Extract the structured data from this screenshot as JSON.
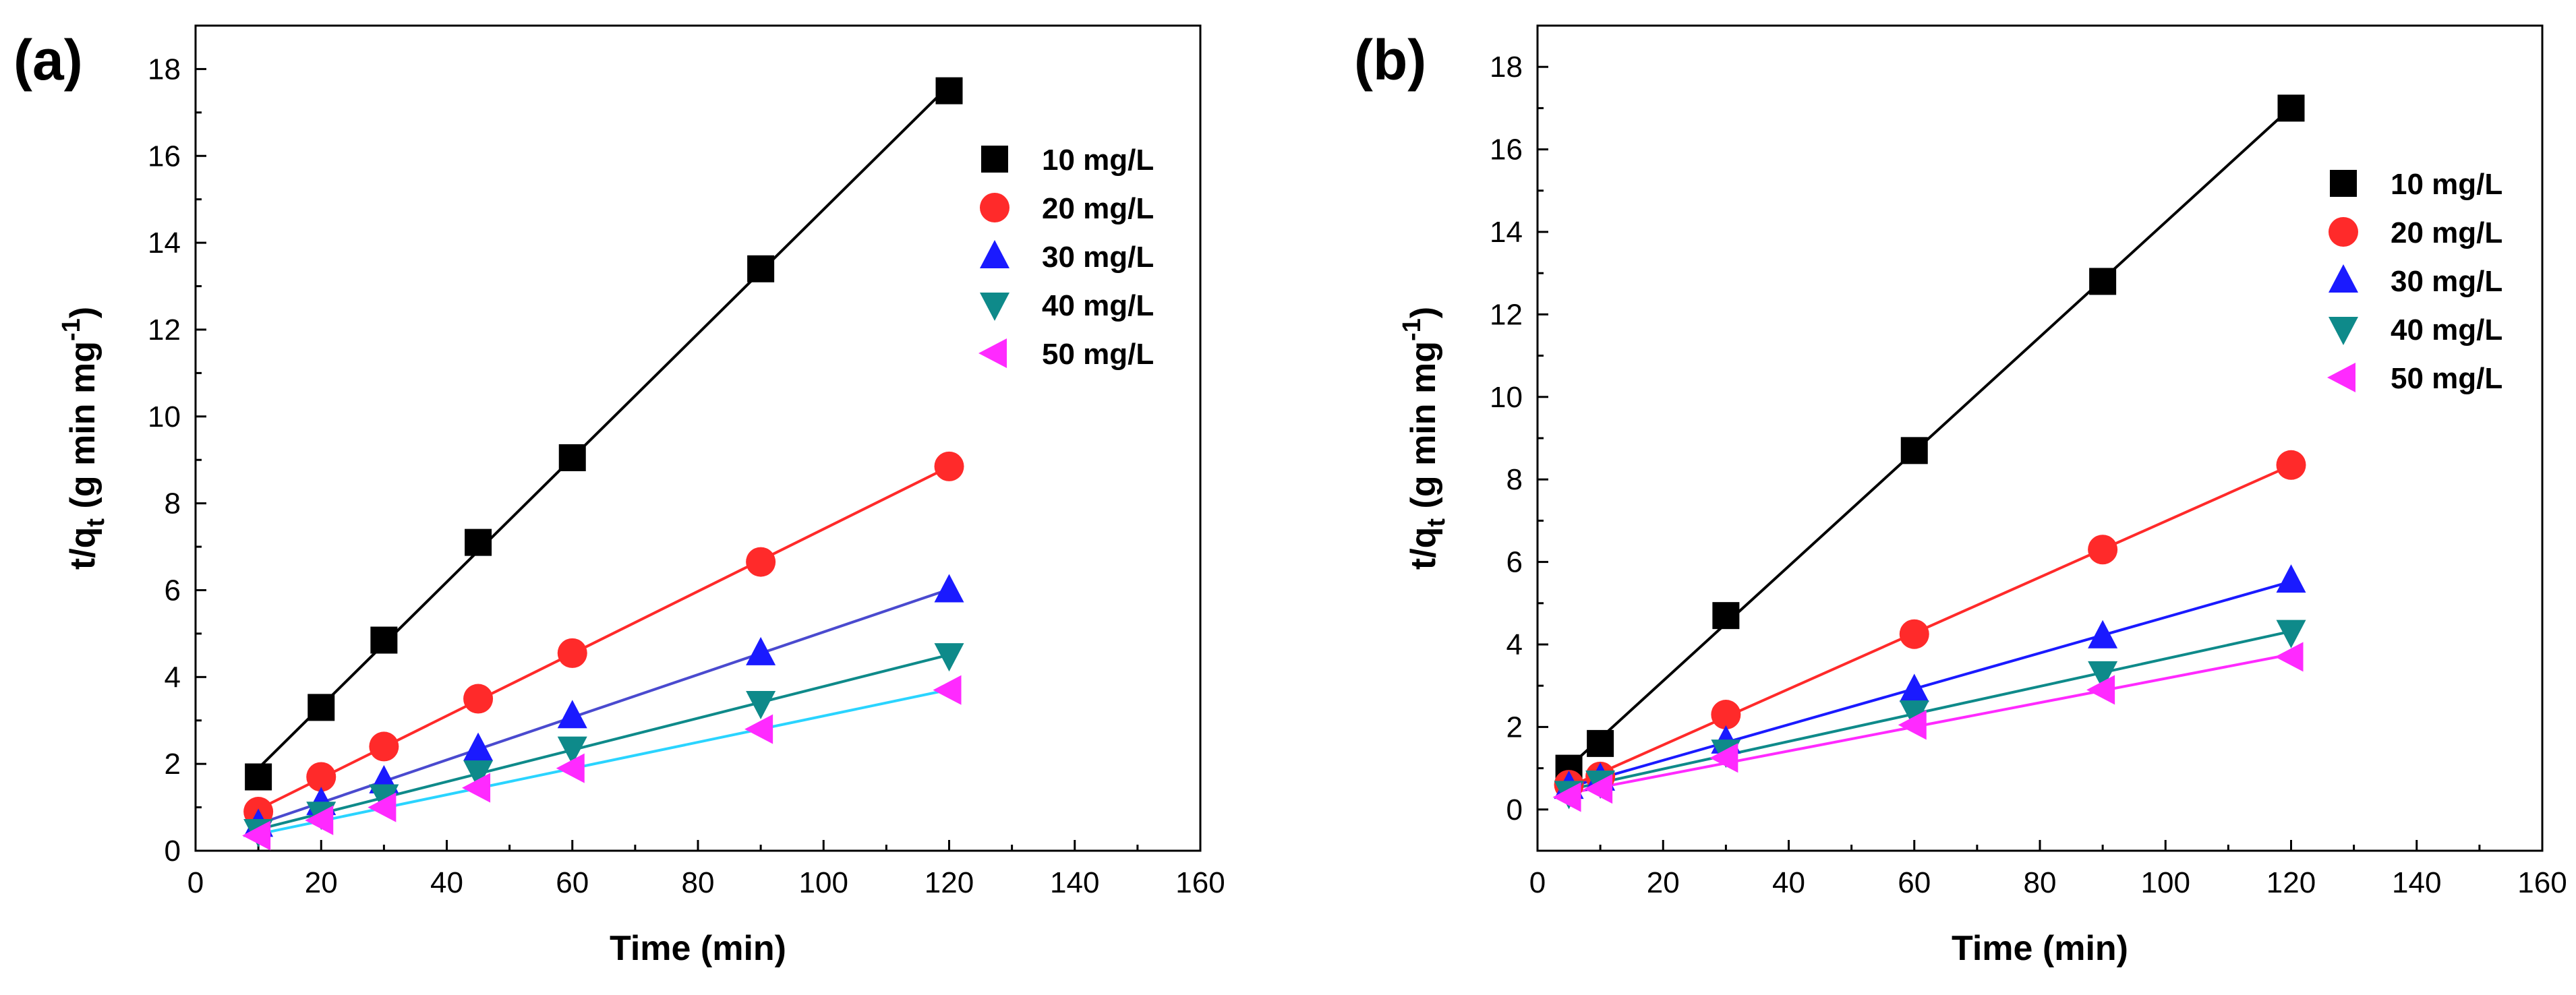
{
  "chart_data": [
    {
      "type": "scatter",
      "panel_label": "(a)",
      "xlabel": "Time (min)",
      "ylabel_main": "t/q",
      "ylabel_sub": "t",
      "ylabel_rest": " (g min mg",
      "ylabel_sup": "-1",
      "ylabel_close": ")",
      "xlim": [
        0,
        160
      ],
      "ylim": [
        0,
        19
      ],
      "xticks": [
        0,
        20,
        40,
        60,
        80,
        100,
        120,
        140,
        160
      ],
      "yticks": [
        0,
        2,
        4,
        6,
        8,
        10,
        12,
        14,
        16,
        18
      ],
      "legend_position": "top-right",
      "series": [
        {
          "name": "10 mg/L",
          "marker": "square",
          "color": "#000000",
          "line_color": "#000000",
          "x": [
            10,
            20,
            30,
            45,
            60,
            90,
            120
          ],
          "y": [
            1.7,
            3.3,
            4.85,
            7.1,
            9.05,
            13.4,
            17.5
          ]
        },
        {
          "name": "20 mg/L",
          "marker": "circle",
          "color": "#ff2a2a",
          "line_color": "#ff2a2a",
          "x": [
            10,
            20,
            30,
            45,
            60,
            90,
            120
          ],
          "y": [
            0.9,
            1.7,
            2.4,
            3.5,
            4.55,
            6.65,
            8.85
          ]
        },
        {
          "name": "30 mg/L",
          "marker": "triangle-up",
          "color": "#1a1aff",
          "line_color": "#4a4acf",
          "x": [
            10,
            20,
            30,
            45,
            60,
            90,
            120
          ],
          "y": [
            0.6,
            1.1,
            1.6,
            2.35,
            3.1,
            4.55,
            6.0
          ]
        },
        {
          "name": "40 mg/L",
          "marker": "triangle-down",
          "color": "#0e8a8a",
          "line_color": "#0e8a8a",
          "x": [
            10,
            20,
            30,
            45,
            60,
            90,
            120
          ],
          "y": [
            0.45,
            0.85,
            1.25,
            1.8,
            2.35,
            3.4,
            4.5
          ]
        },
        {
          "name": "50 mg/L",
          "marker": "triangle-left",
          "color": "#ff2aff",
          "line_color": "#2ad4ff",
          "x": [
            10,
            20,
            30,
            45,
            60,
            90,
            120
          ],
          "y": [
            0.35,
            0.7,
            1.0,
            1.45,
            1.9,
            2.8,
            3.7
          ]
        }
      ]
    },
    {
      "type": "scatter",
      "panel_label": "(b)",
      "xlabel": "Time (min)",
      "ylabel_main": "t/q",
      "ylabel_sub": "t",
      "ylabel_rest": " (g min mg",
      "ylabel_sup": "-1",
      "ylabel_close": ")",
      "xlim": [
        0,
        160
      ],
      "ylim": [
        -1,
        19
      ],
      "xticks": [
        0,
        20,
        40,
        60,
        80,
        100,
        120,
        140,
        160
      ],
      "yticks": [
        0,
        2,
        4,
        6,
        8,
        10,
        12,
        14,
        16,
        18
      ],
      "legend_position": "top-right",
      "series": [
        {
          "name": "10 mg/L",
          "marker": "square",
          "color": "#000000",
          "line_color": "#000000",
          "x": [
            5,
            10,
            30,
            60,
            90,
            120
          ],
          "y": [
            1.0,
            1.6,
            4.7,
            8.7,
            12.8,
            17.0
          ]
        },
        {
          "name": "20 mg/L",
          "marker": "circle",
          "color": "#ff2a2a",
          "line_color": "#ff2a2a",
          "x": [
            5,
            10,
            30,
            60,
            90,
            120
          ],
          "y": [
            0.6,
            0.8,
            2.3,
            4.25,
            6.3,
            8.35
          ]
        },
        {
          "name": "30 mg/L",
          "marker": "triangle-up",
          "color": "#1a1aff",
          "line_color": "#1a1aff",
          "x": [
            5,
            10,
            30,
            60,
            90,
            120
          ],
          "y": [
            0.55,
            0.75,
            1.65,
            2.9,
            4.2,
            5.55
          ]
        },
        {
          "name": "40 mg/L",
          "marker": "triangle-down",
          "color": "#0e8a8a",
          "line_color": "#0e8a8a",
          "x": [
            5,
            10,
            30,
            60,
            90,
            120
          ],
          "y": [
            0.4,
            0.65,
            1.4,
            2.35,
            3.3,
            4.3
          ]
        },
        {
          "name": "50 mg/L",
          "marker": "triangle-left",
          "color": "#ff2aff",
          "line_color": "#ff2aff",
          "x": [
            5,
            10,
            30,
            60,
            90,
            120
          ],
          "y": [
            0.3,
            0.5,
            1.25,
            2.05,
            2.9,
            3.7
          ]
        }
      ]
    }
  ]
}
